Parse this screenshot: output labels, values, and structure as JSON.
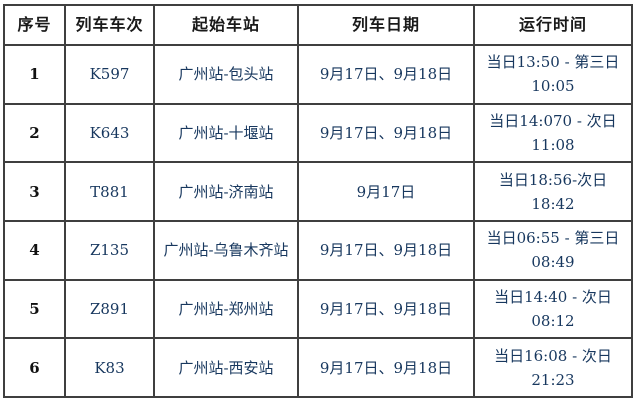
{
  "colors": {
    "border": "#3f3f3f",
    "header_text": "#1a1a1a",
    "data_text": "#17375e",
    "serial_text": "#111111",
    "background": "#ffffff"
  },
  "table": {
    "headers": [
      "序号",
      "列车车次",
      "起始车站",
      "列车日期",
      "运行时间"
    ],
    "rows": [
      {
        "no": "1",
        "train": "K597",
        "route": "广州站-包头站",
        "dates": "9月17日、9月18日",
        "time": "当日13:50 - 第三日 10:05"
      },
      {
        "no": "2",
        "train": "K643",
        "route": "广州站-十堰站",
        "dates": "9月17日、9月18日",
        "time": "当日14:070 - 次日 11:08"
      },
      {
        "no": "3",
        "train": "T881",
        "route": "广州站-济南站",
        "dates": "9月17日",
        "time": "当日18:56-次日 18:42"
      },
      {
        "no": "4",
        "train": "Z135",
        "route": "广州站-乌鲁木齐站",
        "dates": "9月17日、9月18日",
        "time": "当日06:55 - 第三日 08:49"
      },
      {
        "no": "5",
        "train": "Z891",
        "route": "广州站-郑州站",
        "dates": "9月17日、9月18日",
        "time": "当日14:40 - 次日 08:12"
      },
      {
        "no": "6",
        "train": "K83",
        "route": "广州站-西安站",
        "dates": "9月17日、9月18日",
        "time": "当日16:08 - 次日 21:23"
      }
    ]
  }
}
